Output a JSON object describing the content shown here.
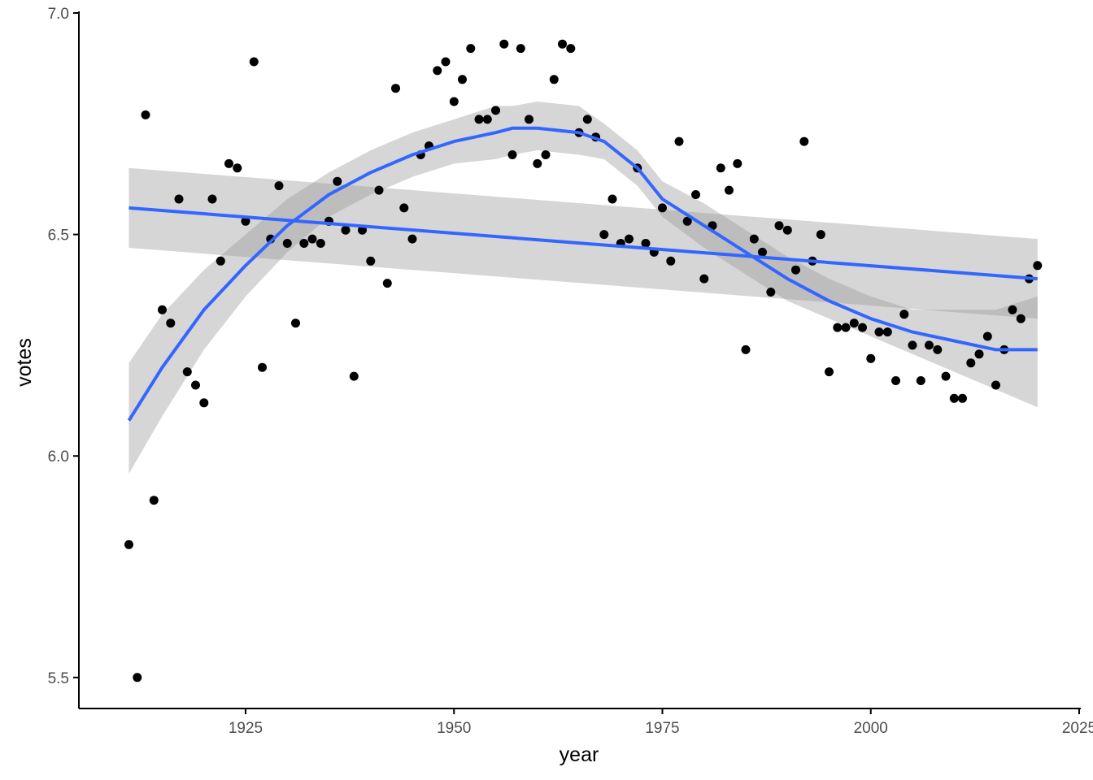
{
  "chart_data": {
    "type": "scatter",
    "title": "",
    "xlabel": "year",
    "ylabel": "votes",
    "xlim": [
      1905,
      2025
    ],
    "ylim": [
      5.43,
      7.0
    ],
    "x_ticks": [
      1925,
      1950,
      1975,
      2000,
      2025
    ],
    "y_ticks": [
      5.5,
      6.0,
      6.5,
      7.0
    ],
    "grid": false,
    "legend": "none",
    "point_color": "#000000",
    "line_color": "#3366FF",
    "ribbon_color": "#999999",
    "points": [
      {
        "x": 1911,
        "y": 5.8
      },
      {
        "x": 1912,
        "y": 5.5
      },
      {
        "x": 1913,
        "y": 6.77
      },
      {
        "x": 1914,
        "y": 5.9
      },
      {
        "x": 1915,
        "y": 6.33
      },
      {
        "x": 1916,
        "y": 6.3
      },
      {
        "x": 1917,
        "y": 6.58
      },
      {
        "x": 1918,
        "y": 6.19
      },
      {
        "x": 1919,
        "y": 6.16
      },
      {
        "x": 1920,
        "y": 6.12
      },
      {
        "x": 1921,
        "y": 6.58
      },
      {
        "x": 1922,
        "y": 6.44
      },
      {
        "x": 1923,
        "y": 6.66
      },
      {
        "x": 1924,
        "y": 6.65
      },
      {
        "x": 1925,
        "y": 6.53
      },
      {
        "x": 1926,
        "y": 6.89
      },
      {
        "x": 1927,
        "y": 6.2
      },
      {
        "x": 1928,
        "y": 6.49
      },
      {
        "x": 1929,
        "y": 6.61
      },
      {
        "x": 1930,
        "y": 6.48
      },
      {
        "x": 1931,
        "y": 6.3
      },
      {
        "x": 1932,
        "y": 6.48
      },
      {
        "x": 1933,
        "y": 6.49
      },
      {
        "x": 1934,
        "y": 6.48
      },
      {
        "x": 1935,
        "y": 6.53
      },
      {
        "x": 1936,
        "y": 6.62
      },
      {
        "x": 1937,
        "y": 6.51
      },
      {
        "x": 1938,
        "y": 6.18
      },
      {
        "x": 1939,
        "y": 6.51
      },
      {
        "x": 1940,
        "y": 6.44
      },
      {
        "x": 1941,
        "y": 6.6
      },
      {
        "x": 1942,
        "y": 6.39
      },
      {
        "x": 1943,
        "y": 6.83
      },
      {
        "x": 1944,
        "y": 6.56
      },
      {
        "x": 1945,
        "y": 6.49
      },
      {
        "x": 1946,
        "y": 6.68
      },
      {
        "x": 1947,
        "y": 6.7
      },
      {
        "x": 1948,
        "y": 6.87
      },
      {
        "x": 1949,
        "y": 6.89
      },
      {
        "x": 1950,
        "y": 6.8
      },
      {
        "x": 1951,
        "y": 6.85
      },
      {
        "x": 1952,
        "y": 6.92
      },
      {
        "x": 1953,
        "y": 6.76
      },
      {
        "x": 1954,
        "y": 6.76
      },
      {
        "x": 1955,
        "y": 6.78
      },
      {
        "x": 1956,
        "y": 6.93
      },
      {
        "x": 1957,
        "y": 6.68
      },
      {
        "x": 1958,
        "y": 6.92
      },
      {
        "x": 1959,
        "y": 6.76
      },
      {
        "x": 1960,
        "y": 6.66
      },
      {
        "x": 1961,
        "y": 6.68
      },
      {
        "x": 1962,
        "y": 6.85
      },
      {
        "x": 1963,
        "y": 6.93
      },
      {
        "x": 1964,
        "y": 6.92
      },
      {
        "x": 1965,
        "y": 6.73
      },
      {
        "x": 1966,
        "y": 6.76
      },
      {
        "x": 1967,
        "y": 6.72
      },
      {
        "x": 1968,
        "y": 6.5
      },
      {
        "x": 1969,
        "y": 6.58
      },
      {
        "x": 1970,
        "y": 6.48
      },
      {
        "x": 1971,
        "y": 6.49
      },
      {
        "x": 1972,
        "y": 6.65
      },
      {
        "x": 1973,
        "y": 6.48
      },
      {
        "x": 1974,
        "y": 6.46
      },
      {
        "x": 1975,
        "y": 6.56
      },
      {
        "x": 1976,
        "y": 6.44
      },
      {
        "x": 1977,
        "y": 6.71
      },
      {
        "x": 1978,
        "y": 6.53
      },
      {
        "x": 1979,
        "y": 6.59
      },
      {
        "x": 1980,
        "y": 6.4
      },
      {
        "x": 1981,
        "y": 6.52
      },
      {
        "x": 1982,
        "y": 6.65
      },
      {
        "x": 1983,
        "y": 6.6
      },
      {
        "x": 1984,
        "y": 6.66
      },
      {
        "x": 1985,
        "y": 6.24
      },
      {
        "x": 1986,
        "y": 6.49
      },
      {
        "x": 1987,
        "y": 6.46
      },
      {
        "x": 1988,
        "y": 6.37
      },
      {
        "x": 1989,
        "y": 6.52
      },
      {
        "x": 1990,
        "y": 6.51
      },
      {
        "x": 1991,
        "y": 6.42
      },
      {
        "x": 1992,
        "y": 6.71
      },
      {
        "x": 1993,
        "y": 6.44
      },
      {
        "x": 1994,
        "y": 6.5
      },
      {
        "x": 1995,
        "y": 6.19
      },
      {
        "x": 1996,
        "y": 6.29
      },
      {
        "x": 1997,
        "y": 6.29
      },
      {
        "x": 1998,
        "y": 6.3
      },
      {
        "x": 1999,
        "y": 6.29
      },
      {
        "x": 2000,
        "y": 6.22
      },
      {
        "x": 2001,
        "y": 6.28
      },
      {
        "x": 2002,
        "y": 6.28
      },
      {
        "x": 2003,
        "y": 6.17
      },
      {
        "x": 2004,
        "y": 6.32
      },
      {
        "x": 2005,
        "y": 6.25
      },
      {
        "x": 2006,
        "y": 6.17
      },
      {
        "x": 2007,
        "y": 6.25
      },
      {
        "x": 2008,
        "y": 6.24
      },
      {
        "x": 2009,
        "y": 6.18
      },
      {
        "x": 2010,
        "y": 6.13
      },
      {
        "x": 2011,
        "y": 6.13
      },
      {
        "x": 2012,
        "y": 6.21
      },
      {
        "x": 2013,
        "y": 6.23
      },
      {
        "x": 2014,
        "y": 6.27
      },
      {
        "x": 2015,
        "y": 6.16
      },
      {
        "x": 2016,
        "y": 6.24
      },
      {
        "x": 2017,
        "y": 6.33
      },
      {
        "x": 2018,
        "y": 6.31
      },
      {
        "x": 2019,
        "y": 6.4
      },
      {
        "x": 2020,
        "y": 6.43
      }
    ],
    "smooth_loess": {
      "x": [
        1911,
        1915,
        1920,
        1925,
        1930,
        1935,
        1940,
        1945,
        1950,
        1955,
        1957,
        1960,
        1965,
        1968,
        1972,
        1975,
        1980,
        1985,
        1990,
        1995,
        2000,
        2005,
        2010,
        2015,
        2020
      ],
      "y": [
        6.08,
        6.2,
        6.33,
        6.43,
        6.52,
        6.59,
        6.64,
        6.68,
        6.71,
        6.73,
        6.74,
        6.74,
        6.73,
        6.71,
        6.65,
        6.58,
        6.52,
        6.46,
        6.4,
        6.35,
        6.31,
        6.28,
        6.26,
        6.24,
        6.24
      ],
      "lower": [
        5.96,
        6.09,
        6.24,
        6.36,
        6.46,
        6.54,
        6.59,
        6.63,
        6.66,
        6.67,
        6.68,
        6.69,
        6.68,
        6.67,
        6.61,
        6.54,
        6.47,
        6.41,
        6.35,
        6.31,
        6.27,
        6.23,
        6.19,
        6.15,
        6.11
      ],
      "upper": [
        6.21,
        6.32,
        6.42,
        6.5,
        6.58,
        6.64,
        6.69,
        6.73,
        6.76,
        6.79,
        6.79,
        6.8,
        6.79,
        6.75,
        6.69,
        6.62,
        6.57,
        6.51,
        6.45,
        6.4,
        6.36,
        6.33,
        6.33,
        6.33,
        6.36
      ]
    },
    "smooth_lm": {
      "x": [
        1911,
        2020
      ],
      "y": [
        6.56,
        6.4
      ],
      "lower": [
        6.47,
        6.31
      ],
      "upper": [
        6.65,
        6.49
      ]
    }
  }
}
